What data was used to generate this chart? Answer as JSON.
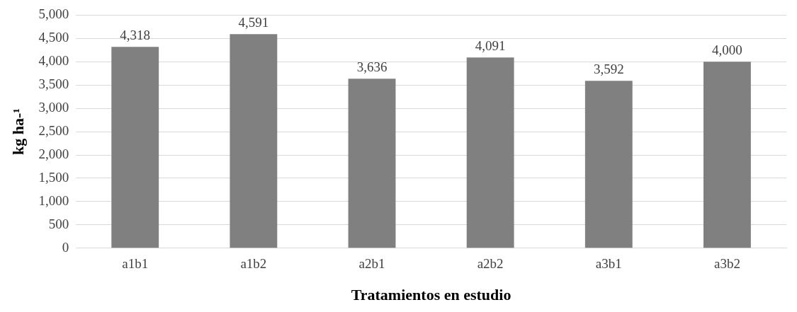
{
  "chart_data": {
    "type": "bar",
    "xlabel": "Tratamientos en estudio",
    "ylabel": "kg ha-¹",
    "categories": [
      "a1b1",
      "a1b2",
      "a2b1",
      "a2b2",
      "a3b1",
      "a3b2"
    ],
    "values": [
      4318,
      4591,
      3636,
      4091,
      3592,
      4000
    ],
    "value_labels": [
      "4,318",
      "4,591",
      "3,636",
      "4,091",
      "3,592",
      "4,000"
    ],
    "color": "#808080",
    "ylim": [
      0,
      5000
    ],
    "yticks": [
      {
        "value": 0,
        "label": "0"
      },
      {
        "value": 500,
        "label": "500"
      },
      {
        "value": 1000,
        "label": "1,000"
      },
      {
        "value": 1500,
        "label": "1,500"
      },
      {
        "value": 2000,
        "label": "2,000"
      },
      {
        "value": 2500,
        "label": "2,500"
      },
      {
        "value": 3000,
        "label": "3,000"
      },
      {
        "value": 3500,
        "label": "3,500"
      },
      {
        "value": 4000,
        "label": "4,000"
      },
      {
        "value": 4500,
        "label": "4,500"
      },
      {
        "value": 5000,
        "label": "5,000"
      }
    ],
    "grid": "y"
  }
}
